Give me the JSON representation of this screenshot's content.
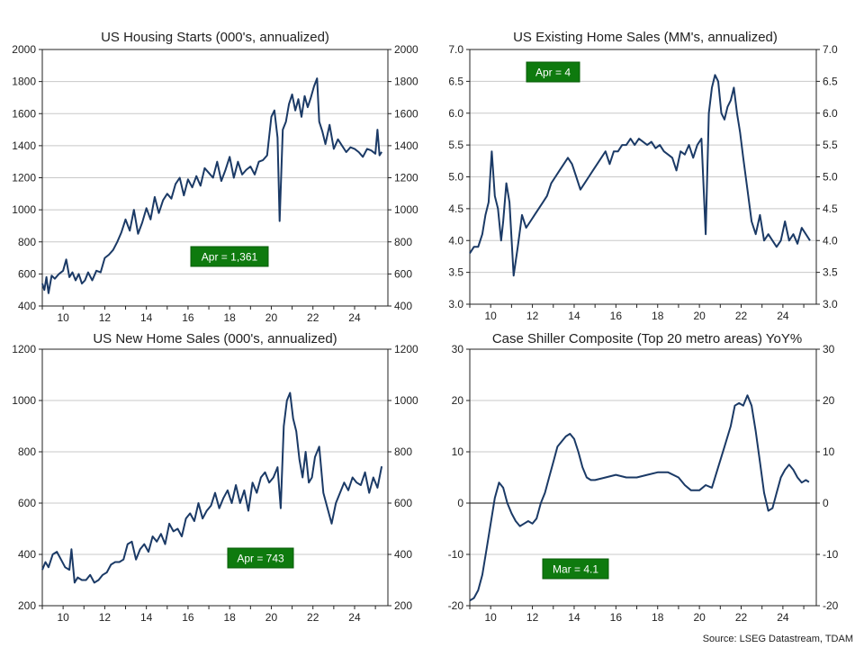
{
  "source": "Source: LSEG Datastream, TDAM",
  "chart_data": [
    {
      "id": "starts",
      "type": "line",
      "title": "US Housing Starts (000's, annualized)",
      "ylim": [
        400,
        2000
      ],
      "yticks": [
        400,
        600,
        800,
        1000,
        1200,
        1400,
        1600,
        1800,
        2000
      ],
      "ytick_labels": [
        "400",
        "600",
        "800",
        "1000",
        "1200",
        "1400",
        "1600",
        "1800",
        "2000"
      ],
      "xlim": [
        2009,
        2025.6
      ],
      "xticks": [
        2010,
        2012,
        2014,
        2016,
        2018,
        2020,
        2022,
        2024
      ],
      "xtick_labels": [
        "10",
        "12",
        "14",
        "16",
        "18",
        "20",
        "22",
        "24"
      ],
      "zero_line": false,
      "annotation": "Apr  = 1,361",
      "series": [
        {
          "x": [
            2009.0,
            2009.1,
            2009.2,
            2009.3,
            2009.45,
            2009.6,
            2009.8,
            2010.0,
            2010.15,
            2010.3,
            2010.45,
            2010.6,
            2010.75,
            2010.9,
            2011.05,
            2011.2,
            2011.4,
            2011.6,
            2011.8,
            2012.0,
            2012.2,
            2012.4,
            2012.6,
            2012.8,
            2013.0,
            2013.2,
            2013.4,
            2013.6,
            2013.8,
            2014.0,
            2014.2,
            2014.4,
            2014.6,
            2014.8,
            2015.0,
            2015.2,
            2015.4,
            2015.6,
            2015.8,
            2016.0,
            2016.2,
            2016.4,
            2016.6,
            2016.8,
            2017.0,
            2017.2,
            2017.4,
            2017.6,
            2017.8,
            2018.0,
            2018.2,
            2018.4,
            2018.6,
            2018.8,
            2019.0,
            2019.2,
            2019.4,
            2019.6,
            2019.8,
            2020.0,
            2020.15,
            2020.3,
            2020.4,
            2020.55,
            2020.7,
            2020.85,
            2021.0,
            2021.15,
            2021.3,
            2021.45,
            2021.6,
            2021.75,
            2021.9,
            2022.05,
            2022.2,
            2022.3,
            2022.45,
            2022.6,
            2022.8,
            2023.0,
            2023.2,
            2023.4,
            2023.6,
            2023.8,
            2024.0,
            2024.2,
            2024.4,
            2024.6,
            2024.8,
            2025.0,
            2025.1,
            2025.2,
            2025.3
          ],
          "y": [
            540,
            500,
            580,
            480,
            590,
            570,
            600,
            620,
            690,
            580,
            610,
            560,
            600,
            540,
            560,
            610,
            560,
            620,
            610,
            700,
            720,
            750,
            800,
            860,
            940,
            870,
            1000,
            850,
            920,
            1010,
            940,
            1080,
            980,
            1060,
            1100,
            1070,
            1160,
            1200,
            1090,
            1190,
            1140,
            1210,
            1150,
            1260,
            1230,
            1200,
            1300,
            1180,
            1250,
            1330,
            1200,
            1300,
            1220,
            1250,
            1270,
            1220,
            1300,
            1310,
            1340,
            1580,
            1620,
            1450,
            930,
            1500,
            1550,
            1660,
            1720,
            1620,
            1690,
            1580,
            1710,
            1640,
            1700,
            1770,
            1820,
            1550,
            1490,
            1410,
            1530,
            1380,
            1440,
            1400,
            1360,
            1390,
            1380,
            1360,
            1330,
            1380,
            1370,
            1350,
            1500,
            1340,
            1361
          ]
        }
      ]
    },
    {
      "id": "existing",
      "type": "line",
      "title": "US Existing Home Sales (MM's, annualized)",
      "ylim": [
        3.0,
        7.0
      ],
      "yticks": [
        3.0,
        3.5,
        4.0,
        4.5,
        5.0,
        5.5,
        6.0,
        6.5,
        7.0
      ],
      "ytick_labels": [
        "3.0",
        "3.5",
        "4.0",
        "4.5",
        "5.0",
        "5.5",
        "6.0",
        "6.5",
        "7.0"
      ],
      "xlim": [
        2009,
        2025.6
      ],
      "xticks": [
        2010,
        2012,
        2014,
        2016,
        2018,
        2020,
        2022,
        2024
      ],
      "xtick_labels": [
        "10",
        "12",
        "14",
        "16",
        "18",
        "20",
        "22",
        "24"
      ],
      "zero_line": false,
      "annotation": "Apr  = 4",
      "series": [
        {
          "x": [
            2009.0,
            2009.2,
            2009.4,
            2009.6,
            2009.75,
            2009.9,
            2010.05,
            2010.2,
            2010.35,
            2010.5,
            2010.6,
            2010.75,
            2010.9,
            2011.1,
            2011.3,
            2011.5,
            2011.7,
            2011.9,
            2012.1,
            2012.3,
            2012.5,
            2012.7,
            2012.9,
            2013.1,
            2013.3,
            2013.5,
            2013.7,
            2013.9,
            2014.1,
            2014.3,
            2014.5,
            2014.7,
            2014.9,
            2015.1,
            2015.3,
            2015.5,
            2015.7,
            2015.9,
            2016.1,
            2016.3,
            2016.5,
            2016.7,
            2016.9,
            2017.1,
            2017.3,
            2017.5,
            2017.7,
            2017.9,
            2018.1,
            2018.3,
            2018.5,
            2018.7,
            2018.9,
            2019.1,
            2019.3,
            2019.5,
            2019.7,
            2019.9,
            2020.1,
            2020.3,
            2020.45,
            2020.6,
            2020.75,
            2020.9,
            2021.05,
            2021.2,
            2021.35,
            2021.5,
            2021.65,
            2021.8,
            2021.95,
            2022.1,
            2022.3,
            2022.5,
            2022.7,
            2022.9,
            2023.1,
            2023.3,
            2023.5,
            2023.7,
            2023.9,
            2024.1,
            2024.3,
            2024.5,
            2024.7,
            2024.9,
            2025.1,
            2025.3
          ],
          "y": [
            3.8,
            3.9,
            3.9,
            4.1,
            4.4,
            4.6,
            5.4,
            4.7,
            4.5,
            4.0,
            4.3,
            4.9,
            4.6,
            3.45,
            3.9,
            4.4,
            4.2,
            4.3,
            4.4,
            4.5,
            4.6,
            4.7,
            4.9,
            5.0,
            5.1,
            5.2,
            5.3,
            5.2,
            5.0,
            4.8,
            4.9,
            5.0,
            5.1,
            5.2,
            5.3,
            5.4,
            5.2,
            5.4,
            5.4,
            5.5,
            5.5,
            5.6,
            5.5,
            5.6,
            5.55,
            5.5,
            5.55,
            5.45,
            5.5,
            5.4,
            5.35,
            5.3,
            5.1,
            5.4,
            5.35,
            5.5,
            5.3,
            5.5,
            5.6,
            4.1,
            6.0,
            6.4,
            6.6,
            6.5,
            6.0,
            5.9,
            6.1,
            6.2,
            6.4,
            6.0,
            5.7,
            5.3,
            4.8,
            4.3,
            4.1,
            4.4,
            4.0,
            4.1,
            4.0,
            3.9,
            4.0,
            4.3,
            4.0,
            4.1,
            3.95,
            4.2,
            4.1,
            4.0
          ]
        }
      ]
    },
    {
      "id": "newhomes",
      "type": "line",
      "title": "US New Home Sales (000's, annualized)",
      "ylim": [
        200,
        1200
      ],
      "yticks": [
        200,
        400,
        600,
        800,
        1000,
        1200
      ],
      "ytick_labels": [
        "200",
        "400",
        "600",
        "800",
        "1000",
        "1200"
      ],
      "xlim": [
        2009,
        2025.6
      ],
      "xticks": [
        2010,
        2012,
        2014,
        2016,
        2018,
        2020,
        2022,
        2024
      ],
      "xtick_labels": [
        "10",
        "12",
        "14",
        "16",
        "18",
        "20",
        "22",
        "24"
      ],
      "zero_line": false,
      "annotation": "Apr  = 743",
      "series": [
        {
          "x": [
            2009.0,
            2009.15,
            2009.3,
            2009.5,
            2009.7,
            2009.9,
            2010.1,
            2010.3,
            2010.4,
            2010.55,
            2010.7,
            2010.9,
            2011.1,
            2011.3,
            2011.5,
            2011.7,
            2011.9,
            2012.1,
            2012.3,
            2012.5,
            2012.7,
            2012.9,
            2013.1,
            2013.3,
            2013.5,
            2013.7,
            2013.9,
            2014.1,
            2014.3,
            2014.5,
            2014.7,
            2014.9,
            2015.1,
            2015.3,
            2015.5,
            2015.7,
            2015.9,
            2016.1,
            2016.3,
            2016.5,
            2016.7,
            2016.9,
            2017.1,
            2017.3,
            2017.5,
            2017.7,
            2017.9,
            2018.1,
            2018.3,
            2018.5,
            2018.7,
            2018.9,
            2019.1,
            2019.3,
            2019.5,
            2019.7,
            2019.9,
            2020.1,
            2020.3,
            2020.45,
            2020.6,
            2020.75,
            2020.9,
            2021.05,
            2021.2,
            2021.35,
            2021.5,
            2021.65,
            2021.8,
            2021.95,
            2022.1,
            2022.3,
            2022.5,
            2022.7,
            2022.9,
            2023.1,
            2023.3,
            2023.5,
            2023.7,
            2023.9,
            2024.1,
            2024.3,
            2024.5,
            2024.7,
            2024.9,
            2025.1,
            2025.3
          ],
          "y": [
            340,
            370,
            350,
            400,
            410,
            380,
            350,
            340,
            420,
            290,
            310,
            300,
            300,
            320,
            290,
            300,
            320,
            330,
            360,
            370,
            370,
            380,
            440,
            450,
            380,
            420,
            440,
            410,
            470,
            450,
            480,
            440,
            520,
            490,
            500,
            470,
            540,
            560,
            530,
            600,
            540,
            570,
            590,
            640,
            580,
            620,
            650,
            600,
            670,
            600,
            650,
            570,
            680,
            640,
            700,
            720,
            680,
            700,
            740,
            580,
            900,
            1000,
            1030,
            930,
            880,
            770,
            700,
            800,
            680,
            700,
            780,
            820,
            640,
            580,
            520,
            600,
            640,
            680,
            650,
            700,
            680,
            670,
            720,
            640,
            700,
            660,
            743
          ]
        }
      ]
    },
    {
      "id": "caseshiller",
      "type": "line",
      "title": "Case Shiller Composite (Top 20 metro areas) YoY%",
      "ylim": [
        -20,
        30
      ],
      "yticks": [
        -20,
        -10,
        0,
        10,
        20,
        30
      ],
      "ytick_labels": [
        "-20",
        "-10",
        "0",
        "10",
        "20",
        "30"
      ],
      "xlim": [
        2009,
        2025.6
      ],
      "xticks": [
        2010,
        2012,
        2014,
        2016,
        2018,
        2020,
        2022,
        2024
      ],
      "xtick_labels": [
        "10",
        "12",
        "14",
        "16",
        "18",
        "20",
        "22",
        "24"
      ],
      "zero_line": true,
      "annotation": "Mar  = 4.1",
      "series": [
        {
          "x": [
            2009.0,
            2009.2,
            2009.4,
            2009.6,
            2009.8,
            2010.0,
            2010.2,
            2010.4,
            2010.6,
            2010.8,
            2011.0,
            2011.2,
            2011.4,
            2011.6,
            2011.8,
            2012.0,
            2012.2,
            2012.4,
            2012.6,
            2012.8,
            2013.0,
            2013.2,
            2013.4,
            2013.6,
            2013.8,
            2014.0,
            2014.2,
            2014.4,
            2014.6,
            2014.8,
            2015.0,
            2015.5,
            2016.0,
            2016.5,
            2017.0,
            2017.5,
            2018.0,
            2018.5,
            2019.0,
            2019.3,
            2019.6,
            2020.0,
            2020.3,
            2020.6,
            2020.9,
            2021.2,
            2021.5,
            2021.7,
            2021.9,
            2022.1,
            2022.3,
            2022.5,
            2022.7,
            2022.9,
            2023.1,
            2023.3,
            2023.5,
            2023.7,
            2023.9,
            2024.1,
            2024.3,
            2024.5,
            2024.7,
            2024.9,
            2025.1,
            2025.25
          ],
          "y": [
            -19,
            -18.5,
            -17,
            -14,
            -9,
            -4,
            1,
            4,
            3,
            0,
            -2,
            -3.5,
            -4.5,
            -4,
            -3.5,
            -4,
            -3,
            0,
            2,
            5,
            8,
            11,
            12,
            13,
            13.5,
            12.5,
            10,
            7,
            5,
            4.5,
            4.5,
            5,
            5.5,
            5,
            5,
            5.5,
            6,
            6,
            5,
            3.5,
            2.5,
            2.5,
            3.5,
            3,
            7,
            11,
            15,
            19,
            19.5,
            19,
            21,
            19,
            14,
            8,
            2,
            -1.5,
            -1,
            2,
            5,
            6.5,
            7.5,
            6.5,
            5,
            4,
            4.5,
            4.1
          ]
        }
      ]
    }
  ]
}
